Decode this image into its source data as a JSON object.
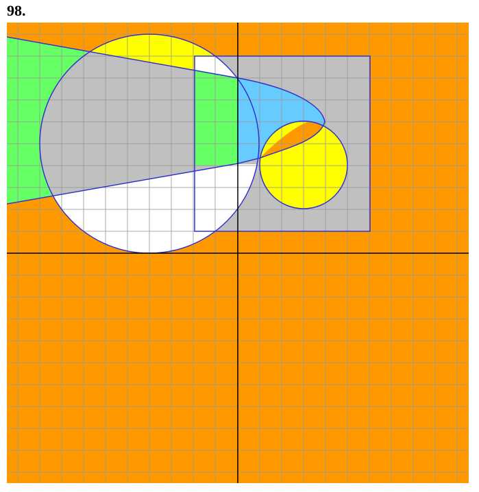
{
  "problem_number": "98.",
  "colors": {
    "background": "#FF9900",
    "grid_line": "#999999",
    "axis": "#000000",
    "outline": "#3333CC",
    "gray_region": "#C0C0C0",
    "green_region": "#66FF66",
    "yellow_region": "#FFFF00",
    "white_region": "#FFFFFF",
    "blue_region": "#66CCFF"
  }
}
